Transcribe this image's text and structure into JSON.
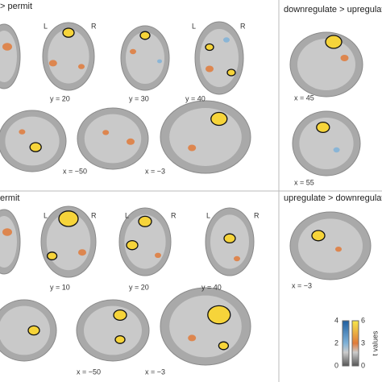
{
  "panels": [
    {
      "title": "> permit",
      "orient": [
        "L",
        "R",
        "L",
        "R"
      ],
      "slices": [
        "y = 20",
        "y = 30",
        "y = 40",
        "x = −50",
        "x = −3"
      ]
    },
    {
      "title": "downregulate > upregulate",
      "slices": [
        "x = 45",
        "x = 55"
      ]
    },
    {
      "title": "ermit",
      "orient": [
        "L",
        "R",
        "L",
        "R",
        "L",
        "R"
      ],
      "slices": [
        "y = 10",
        "y = 20",
        "y = 40",
        "x = −50",
        "x = −3"
      ]
    },
    {
      "title": "upregulate > downregulate",
      "slices": [
        "x = −3"
      ]
    }
  ],
  "colorbar": {
    "left_ticks": [
      "4",
      "2",
      "0"
    ],
    "right_ticks": [
      "6",
      "3",
      "0"
    ],
    "label": "t values"
  }
}
